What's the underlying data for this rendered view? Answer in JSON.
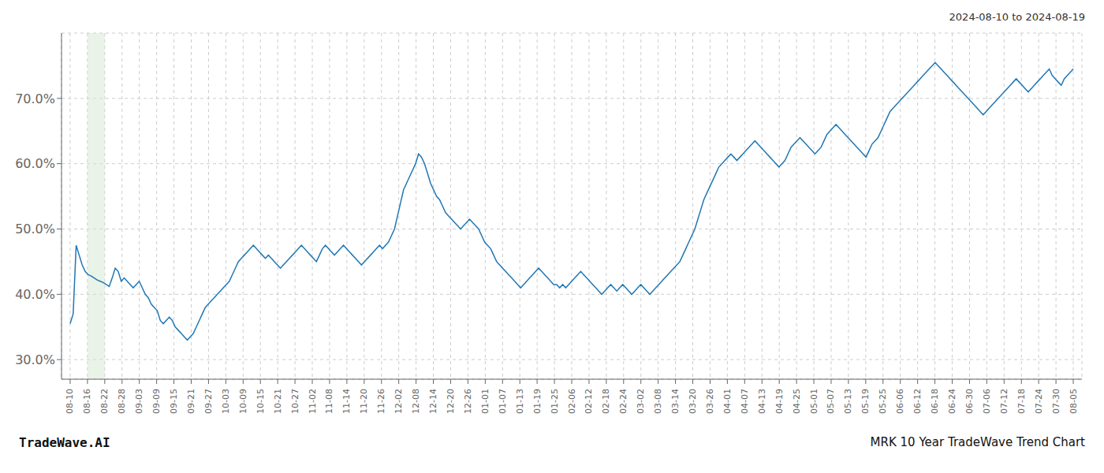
{
  "chart_data": {
    "type": "line",
    "title": "2024-08-10 to 2024-08-19",
    "annotations": [
      "TradeWave.AI",
      "MRK 10 Year TradeWave Trend Chart"
    ],
    "color": "#1f77b4",
    "grid": true,
    "xlim": [
      -0.5,
      58.5
    ],
    "ylim": [
      27.0,
      80.0
    ],
    "xticks": [
      {
        "value": 0,
        "label": "08-10"
      },
      {
        "value": 1,
        "label": "08-16"
      },
      {
        "value": 2,
        "label": "08-22"
      },
      {
        "value": 3,
        "label": "08-28"
      },
      {
        "value": 4,
        "label": "09-03"
      },
      {
        "value": 5,
        "label": "09-09"
      },
      {
        "value": 6,
        "label": "09-15"
      },
      {
        "value": 7,
        "label": "09-21"
      },
      {
        "value": 8,
        "label": "09-27"
      },
      {
        "value": 9,
        "label": "10-03"
      },
      {
        "value": 10,
        "label": "10-09"
      },
      {
        "value": 11,
        "label": "10-15"
      },
      {
        "value": 12,
        "label": "10-21"
      },
      {
        "value": 13,
        "label": "10-27"
      },
      {
        "value": 14,
        "label": "11-02"
      },
      {
        "value": 15,
        "label": "11-08"
      },
      {
        "value": 16,
        "label": "11-14"
      },
      {
        "value": 17,
        "label": "11-20"
      },
      {
        "value": 18,
        "label": "11-26"
      },
      {
        "value": 19,
        "label": "12-02"
      },
      {
        "value": 20,
        "label": "12-08"
      },
      {
        "value": 21,
        "label": "12-14"
      },
      {
        "value": 22,
        "label": "12-20"
      },
      {
        "value": 23,
        "label": "12-26"
      },
      {
        "value": 24,
        "label": "01-01"
      },
      {
        "value": 25,
        "label": "01-07"
      },
      {
        "value": 26,
        "label": "01-13"
      },
      {
        "value": 27,
        "label": "01-19"
      },
      {
        "value": 28,
        "label": "01-25"
      },
      {
        "value": 29,
        "label": "02-06"
      },
      {
        "value": 30,
        "label": "02-12"
      },
      {
        "value": 31,
        "label": "02-18"
      },
      {
        "value": 32,
        "label": "02-24"
      },
      {
        "value": 33,
        "label": "03-02"
      },
      {
        "value": 34,
        "label": "03-08"
      },
      {
        "value": 35,
        "label": "03-14"
      },
      {
        "value": 36,
        "label": "03-20"
      },
      {
        "value": 37,
        "label": "03-26"
      },
      {
        "value": 38,
        "label": "04-01"
      },
      {
        "value": 39,
        "label": "04-07"
      },
      {
        "value": 40,
        "label": "04-13"
      },
      {
        "value": 41,
        "label": "04-19"
      },
      {
        "value": 42,
        "label": "04-25"
      },
      {
        "value": 43,
        "label": "05-01"
      },
      {
        "value": 44,
        "label": "05-07"
      },
      {
        "value": 45,
        "label": "05-13"
      },
      {
        "value": 46,
        "label": "05-19"
      },
      {
        "value": 47,
        "label": "05-25"
      },
      {
        "value": 48,
        "label": "06-06"
      },
      {
        "value": 49,
        "label": "06-12"
      },
      {
        "value": 50,
        "label": "06-18"
      },
      {
        "value": 51,
        "label": "06-24"
      },
      {
        "value": 52,
        "label": "06-30"
      },
      {
        "value": 53,
        "label": "07-06"
      },
      {
        "value": 54,
        "label": "07-12"
      },
      {
        "value": 55,
        "label": "07-18"
      },
      {
        "value": 56,
        "label": "07-24"
      },
      {
        "value": 57,
        "label": "07-30"
      },
      {
        "value": 58,
        "label": "08-05"
      }
    ],
    "yticks": [
      {
        "value": 30.0,
        "label": "30.0%"
      },
      {
        "value": 40.0,
        "label": "40.0%"
      },
      {
        "value": 50.0,
        "label": "50.0%"
      },
      {
        "value": 60.0,
        "label": "60.0%"
      },
      {
        "value": 70.0,
        "label": "70.0%"
      }
    ],
    "highlight": {
      "range": [
        1.0,
        2.0
      ],
      "color": "#d4e8d0"
    },
    "x": [
      0,
      0.1737,
      0.3473,
      0.521,
      0.6946,
      0.8683,
      1.0419,
      1.2156,
      1.3892,
      1.5629,
      1.7365,
      1.9102,
      2.0838,
      2.2575,
      2.4311,
      2.6048,
      2.7784,
      2.9521,
      3.1257,
      3.2994,
      3.4731,
      3.6467,
      3.8204,
      3.994,
      4.1677,
      4.3413,
      4.515,
      4.6886,
      4.8623,
      5.0359,
      5.2096,
      5.3832,
      5.5569,
      5.7305,
      5.9042,
      6.0778,
      6.2515,
      6.4251,
      6.5988,
      6.7725,
      6.9461,
      7.1198,
      7.2934,
      7.4671,
      7.6407,
      7.8144,
      7.988,
      8.1617,
      8.3353,
      8.509,
      8.6826,
      8.8563,
      9.0299,
      9.2036,
      9.3772,
      9.5509,
      9.7246,
      9.8982,
      10.0719,
      10.2455,
      10.4192,
      10.5928,
      10.7665,
      10.9401,
      11.1138,
      11.2874,
      11.4611,
      11.6347,
      11.8084,
      11.982,
      12.1557,
      12.3293,
      12.503,
      12.6766,
      12.8503,
      13.024,
      13.1976,
      13.3713,
      13.5449,
      13.7186,
      13.8922,
      14.0659,
      14.2395,
      14.4132,
      14.5868,
      14.7605,
      14.9341,
      15.1078,
      15.2814,
      15.4551,
      15.6287,
      15.8024,
      15.976,
      16.1497,
      16.3234,
      16.497,
      16.6707,
      16.8443,
      17.018,
      17.1916,
      17.3653,
      17.5389,
      17.7126,
      17.8862,
      18.0599,
      18.2335,
      18.4072,
      18.5808,
      18.7545,
      18.9281,
      19.1018,
      19.2754,
      19.4491,
      19.6228,
      19.7964,
      19.9701,
      20.1437,
      20.3174,
      20.491,
      20.6647,
      20.8383,
      21.012,
      21.1856,
      21.3593,
      21.5329,
      21.7066,
      21.8802,
      22.0539,
      22.2275,
      22.4012,
      22.5749,
      22.7485,
      22.9222,
      23.0958,
      23.2695,
      23.4431,
      23.6168,
      23.7904,
      23.9641,
      24.1377,
      24.3114,
      24.485,
      24.6587,
      24.8323,
      25.006,
      25.1796,
      25.3533,
      25.5269,
      25.7006,
      25.8743,
      26.0479,
      26.2216,
      26.3952,
      26.5689,
      26.7425,
      26.9162,
      27.0898,
      27.2635,
      27.4371,
      27.6108,
      27.7844,
      27.9581,
      28.1317,
      28.3054,
      28.479,
      28.6527,
      28.8263,
      29,
      29.1737,
      29.3473,
      29.521,
      29.6946,
      29.8683,
      30.0419,
      30.2156,
      30.3892,
      30.5629,
      30.7365,
      30.9102,
      31.0838,
      31.2575,
      31.4311,
      31.6048,
      31.7784,
      31.9521,
      32.1257,
      32.2994,
      32.4731,
      32.6467,
      32.8204,
      32.994,
      33.1677,
      33.3413,
      33.515,
      33.6886,
      33.8623,
      34.0359,
      34.2096,
      34.3832,
      34.5569,
      34.7305,
      34.9042,
      35.0778,
      35.2515,
      35.4251,
      35.5988,
      35.7725,
      35.9461,
      36.1198,
      36.2934,
      36.4671,
      36.6407,
      36.8144,
      36.988,
      37.1617,
      37.3353,
      37.509,
      37.6826,
      37.8563,
      38.0299,
      38.2036,
      38.3772,
      38.5509,
      38.7246,
      38.8982,
      39.0719,
      39.2455,
      39.4192,
      39.5928,
      39.7665,
      39.9401,
      40.1138,
      40.2874,
      40.4611,
      40.6347,
      40.8084,
      40.982,
      41.1557,
      41.3293,
      41.503,
      41.6766,
      41.8503,
      42.024,
      42.1976,
      42.3713,
      42.5449,
      42.7186,
      42.8922,
      43.0659,
      43.2395,
      43.4132,
      43.5868,
      43.7605,
      43.9341,
      44.1078,
      44.2814,
      44.4551,
      44.6287,
      44.8024,
      44.976,
      45.1497,
      45.3234,
      45.497,
      45.6707,
      45.8443,
      46.018,
      46.1916,
      46.3653,
      46.5389,
      46.7126,
      46.8862,
      47.0599,
      47.2335,
      47.4072,
      47.5808,
      47.7545,
      47.9281,
      48.1018,
      48.2754,
      48.4491,
      48.6228,
      48.7964,
      48.9701,
      49.1437,
      49.3174,
      49.491,
      49.6647,
      49.8383,
      50.012,
      50.1856,
      50.3593,
      50.5329,
      50.7066,
      50.8802,
      51.0539,
      51.2275,
      51.4012,
      51.5749,
      51.7485,
      51.9222,
      52.0958,
      52.2695,
      52.4431,
      52.6168,
      52.7904,
      52.9641,
      53.1377,
      53.3114,
      53.485,
      53.6587,
      53.8323,
      54.006,
      54.1796,
      54.3533,
      54.5269,
      54.7006,
      54.8743,
      55.0479,
      55.2216,
      55.3952,
      55.5689,
      55.7425,
      55.9162,
      56.0898,
      56.2635,
      56.4371,
      56.6108,
      56.7844,
      56.9581,
      57.1317,
      57.3054,
      57.479,
      57.6527,
      57.8263,
      58
    ],
    "values": [
      35.5,
      37.0,
      47.5,
      46.0,
      44.5,
      43.5,
      43.0,
      42.8,
      42.5,
      42.2,
      42.0,
      41.8,
      41.5,
      41.2,
      42.5,
      44.0,
      43.5,
      42.0,
      42.5,
      42.0,
      41.5,
      41.0,
      41.5,
      42.0,
      41.0,
      40.0,
      39.5,
      38.5,
      38.0,
      37.5,
      36.0,
      35.5,
      36.0,
      36.5,
      36.0,
      35.0,
      34.5,
      34.0,
      33.5,
      33.0,
      33.5,
      34.0,
      35.0,
      36.0,
      37.0,
      38.0,
      38.5,
      39.0,
      39.5,
      40.0,
      40.5,
      41.0,
      41.5,
      42.0,
      43.0,
      44.0,
      45.0,
      45.5,
      46.0,
      46.5,
      47.0,
      47.5,
      47.0,
      46.5,
      46.0,
      45.5,
      46.0,
      45.5,
      45.0,
      44.5,
      44.0,
      44.5,
      45.0,
      45.5,
      46.0,
      46.5,
      47.0,
      47.5,
      47.0,
      46.5,
      46.0,
      45.5,
      45.0,
      46.0,
      47.0,
      47.5,
      47.0,
      46.5,
      46.0,
      46.5,
      47.0,
      47.5,
      47.0,
      46.5,
      46.0,
      45.5,
      45.0,
      44.5,
      45.0,
      45.5,
      46.0,
      46.5,
      47.0,
      47.5,
      47.0,
      47.5,
      48.0,
      49.0,
      50.0,
      52.0,
      54.0,
      56.0,
      57.0,
      58.0,
      59.0,
      60.0,
      61.5,
      61.0,
      60.0,
      58.5,
      57.0,
      56.0,
      55.0,
      54.5,
      53.5,
      52.5,
      52.0,
      51.5,
      51.0,
      50.5,
      50.0,
      50.5,
      51.0,
      51.5,
      51.0,
      50.5,
      50.0,
      49.0,
      48.0,
      47.5,
      47.0,
      46.0,
      45.0,
      44.5,
      44.0,
      43.5,
      43.0,
      42.5,
      42.0,
      41.5,
      41.0,
      41.5,
      42.0,
      42.5,
      43.0,
      43.5,
      44.0,
      43.5,
      43.0,
      42.5,
      42.0,
      41.5,
      41.5,
      41.0,
      41.5,
      41.0,
      41.5,
      42.0,
      42.5,
      43.0,
      43.5,
      43.0,
      42.5,
      42.0,
      41.5,
      41.0,
      40.5,
      40.0,
      40.5,
      41.0,
      41.5,
      41.0,
      40.5,
      41.0,
      41.5,
      41.0,
      40.5,
      40.0,
      40.5,
      41.0,
      41.5,
      41.0,
      40.5,
      40.0,
      40.5,
      41.0,
      41.5,
      42.0,
      42.5,
      43.0,
      43.5,
      44.0,
      44.5,
      45.0,
      46.0,
      47.0,
      48.0,
      49.0,
      50.0,
      51.5,
      53.0,
      54.5,
      55.5,
      56.5,
      57.5,
      58.5,
      59.5,
      60.0,
      60.5,
      61.0,
      61.5,
      61.0,
      60.5,
      61.0,
      61.5,
      62.0,
      62.5,
      63.0,
      63.5,
      63.0,
      62.5,
      62.0,
      61.5,
      61.0,
      60.5,
      60.0,
      59.5,
      60.0,
      60.5,
      61.5,
      62.5,
      63.0,
      63.5,
      64.0,
      63.5,
      63.0,
      62.5,
      62.0,
      61.5,
      62.0,
      62.5,
      63.5,
      64.5,
      65.0,
      65.5,
      66.0,
      65.5,
      65.0,
      64.5,
      64.0,
      63.5,
      63.0,
      62.5,
      62.0,
      61.5,
      61.0,
      62.0,
      63.0,
      63.5,
      64.0,
      65.0,
      66.0,
      67.0,
      68.0,
      68.5,
      69.0,
      69.5,
      70.0,
      70.5,
      71.0,
      71.5,
      72.0,
      72.5,
      73.0,
      73.5,
      74.0,
      74.5,
      75.0,
      75.5,
      75.0,
      74.5,
      74.0,
      73.5,
      73.0,
      72.5,
      72.0,
      71.5,
      71.0,
      70.5,
      70.0,
      69.5,
      69.0,
      68.5,
      68.0,
      67.5,
      68.0,
      68.5,
      69.0,
      69.5,
      70.0,
      70.5,
      71.0,
      71.5,
      72.0,
      72.5,
      73.0,
      72.5,
      72.0,
      71.5,
      71.0,
      71.5,
      72.0,
      72.5,
      73.0,
      73.5,
      74.0,
      74.5,
      73.5,
      73.0,
      72.5,
      72.0,
      73.0,
      73.5,
      74.0,
      74.5
    ]
  }
}
